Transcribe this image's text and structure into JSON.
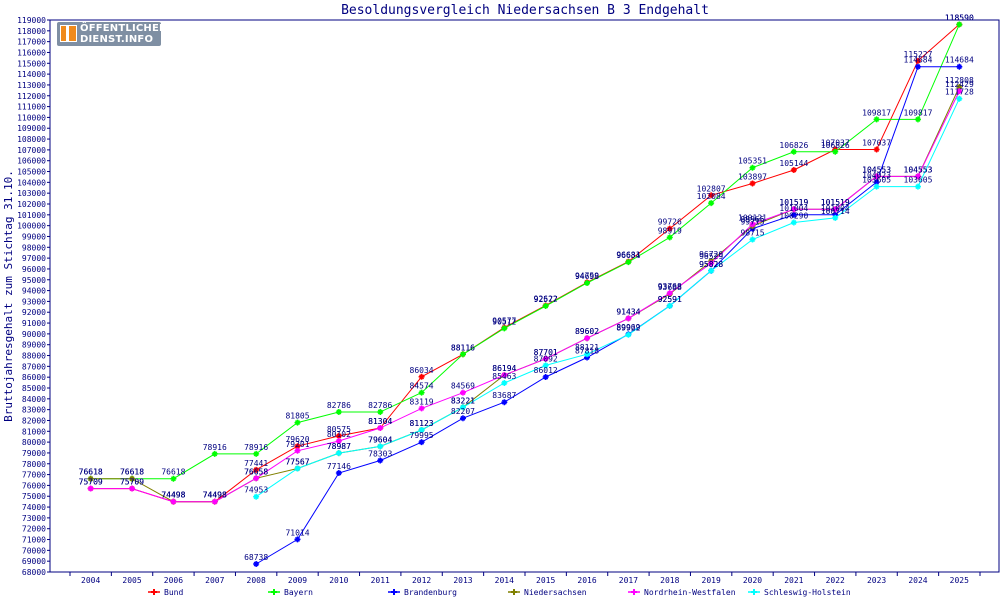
{
  "chart_data": {
    "type": "line",
    "title": "Besoldungsvergleich Niedersachsen B 3 Endgehalt",
    "ylabel": "Bruttojahresgehalt zum Stichtag 31.10.",
    "xlabel": "",
    "ylim": [
      68000,
      119000
    ],
    "ytick_step": 1000,
    "grid": false,
    "legend_position": "bottom",
    "categories": [
      "2004",
      "2005",
      "2006",
      "2007",
      "2008",
      "2009",
      "2010",
      "2011",
      "2012",
      "2013",
      "2014",
      "2015",
      "2016",
      "2017",
      "2018",
      "2019",
      "2020",
      "2021",
      "2022",
      "2023",
      "2024",
      "2025"
    ],
    "series": [
      {
        "name": "Bund",
        "color": "#ff0000",
        "values": [
          75709,
          75709,
          74498,
          74498,
          77441,
          79620,
          80575,
          81304,
          86034,
          88116,
          90577,
          92622,
          94759,
          96681,
          99726,
          102807,
          103897,
          105144,
          107037,
          107037,
          115227,
          118590
        ]
      },
      {
        "name": "Bayern",
        "color": "#00ff00",
        "values": [
          76618,
          76618,
          76618,
          78916,
          78916,
          81805,
          82786,
          82786,
          84574,
          88116,
          90512,
          92577,
          94698,
          96634,
          98919,
          102084,
          105351,
          106826,
          106826,
          109817,
          109817,
          118590
        ]
      },
      {
        "name": "Brandenburg",
        "color": "#0000ff",
        "values": [
          null,
          null,
          null,
          null,
          68738,
          71014,
          77146,
          78303,
          79995,
          82207,
          83687,
          86012,
          87818,
          89969,
          92591,
          95828,
          99715,
          101004,
          101004,
          104023,
          114684,
          114684
        ]
      },
      {
        "name": "Niedersachsen",
        "color": "#808000",
        "values": [
          76618,
          76618,
          74498,
          74498,
          76658,
          77567,
          78987,
          79604,
          81123,
          83221,
          86194,
          87701,
          89602,
          91434,
          93688,
          96720,
          99966,
          101519,
          101519,
          104553,
          104553,
          112808
        ]
      },
      {
        "name": "Nordrhein-Westfalen",
        "color": "#ff00ff",
        "values": [
          75709,
          75709,
          74498,
          74498,
          76658,
          79201,
          80102,
          81304,
          83119,
          84569,
          86194,
          87701,
          89602,
          91434,
          93768,
          96529,
          100121,
          101519,
          101519,
          104553,
          104553,
          112429
        ]
      },
      {
        "name": "Schleswig-Holstein",
        "color": "#00ffff",
        "values": [
          null,
          null,
          null,
          null,
          74953,
          77567,
          78987,
          79604,
          81123,
          83221,
          85463,
          87092,
          88121,
          89922,
          92591,
          95828,
          98715,
          100290,
          100714,
          103605,
          103605,
          111728
        ]
      }
    ]
  },
  "logo": {
    "line1": "ÖFFENTLICHER",
    "line2": "DIENST.INFO"
  }
}
